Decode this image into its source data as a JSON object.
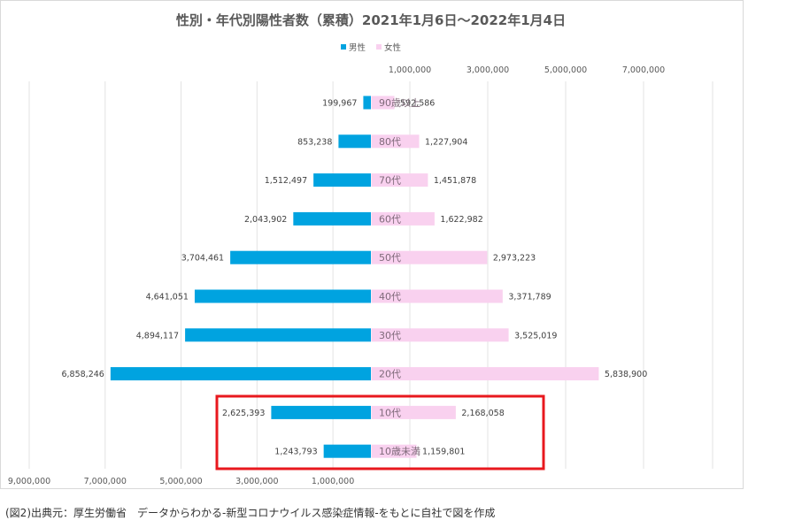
{
  "chart_data": {
    "type": "bar",
    "title": "性別・年代別陽性者数（累積）2021年1月6日～2022年1月4日",
    "categories": [
      "90歳以上",
      "80代",
      "70代",
      "60代",
      "50代",
      "40代",
      "30代",
      "20代",
      "10代",
      "10歳未満"
    ],
    "series": [
      {
        "name": "男性",
        "color": "#00a3e0",
        "values": [
          199967,
          853238,
          1512497,
          2043902,
          3704461,
          4641051,
          4894117,
          6858246,
          2625393,
          1243793
        ],
        "labels": [
          "199,967",
          "853,238",
          "1,512,497",
          "2,043,902",
          "3,704,461",
          "4,641,051",
          "4,894,117",
          "6,858,246",
          "2,625,393",
          "1,243,793"
        ]
      },
      {
        "name": "女性",
        "color": "#f9d1ef",
        "values": [
          592586,
          1227904,
          1451878,
          1622982,
          2973223,
          3371789,
          3525019,
          5838900,
          2168058,
          1159801
        ],
        "labels": [
          "592,586",
          "1,227,904",
          "1,451,878",
          "1,622,982",
          "2,973,223",
          "3,371,789",
          "3,525,019",
          "5,838,900",
          "2,168,058",
          "1,159,801"
        ]
      }
    ],
    "male_axis": {
      "ticks": [
        "9,000,000",
        "7,000,000",
        "5,000,000",
        "3,000,000",
        "1,000,000"
      ],
      "tick_values": [
        9000000,
        7000000,
        5000000,
        3000000,
        1000000
      ],
      "reversed": true
    },
    "female_axis": {
      "ticks": [
        "1,000,000",
        "3,000,000",
        "5,000,000",
        "7,000,000"
      ],
      "tick_values": [
        1000000,
        3000000,
        5000000,
        7000000
      ]
    },
    "legend_position": "top-center",
    "grid": true,
    "highlight": {
      "categories": [
        "10代",
        "10歳未満"
      ],
      "color": "#e8181e"
    }
  },
  "caption": "(図2)出典元：厚生労働省　データからわかる-新型コロナウイルス感染症情報-をもとに自社で図を作成"
}
